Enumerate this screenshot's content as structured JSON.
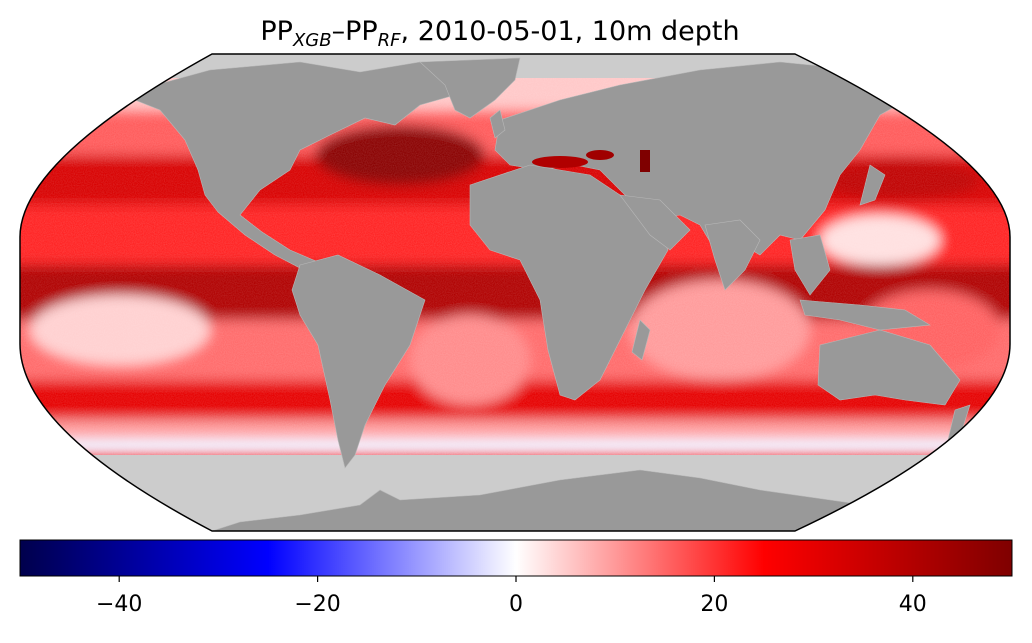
{
  "figure": {
    "title_main1": "PP",
    "title_sub1": "XGB",
    "title_dash": "–PP",
    "title_sub2": "RF",
    "title_rest": ", 2010-05-01, 10m depth"
  },
  "map": {
    "projection": "Robinson",
    "land_color": "#999999",
    "antarctic_ocean_mask_color": "#cccccc",
    "colormap": "seismic"
  },
  "colorbar": {
    "min": -50,
    "max": 50,
    "ticks": [
      -40,
      -20,
      0,
      20,
      40
    ],
    "tick_labels": [
      "−40",
      "−20",
      "0",
      "20",
      "40"
    ],
    "colors": [
      "#00004c",
      "#0000ff",
      "#ffffff",
      "#ff0000",
      "#7f0000"
    ]
  }
}
